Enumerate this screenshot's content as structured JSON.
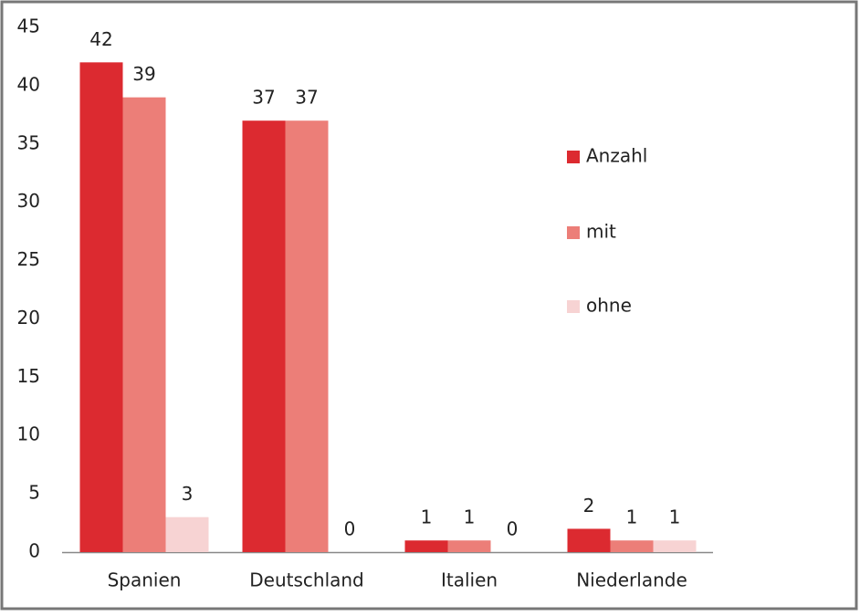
{
  "chart_data": {
    "type": "bar",
    "categories": [
      "Spanien",
      "Deutschland",
      "Italien",
      "Niederlande"
    ],
    "series": [
      {
        "name": "Anzahl",
        "color": "#dc2a30",
        "values": [
          42,
          37,
          1,
          2
        ]
      },
      {
        "name": "mit",
        "color": "#ec7e78",
        "values": [
          39,
          37,
          1,
          1
        ]
      },
      {
        "name": "ohne",
        "color": "#f7d3d3",
        "values": [
          3,
          0,
          0,
          1
        ]
      }
    ],
    "ylim": [
      0,
      45
    ],
    "yticks": [
      0,
      5,
      10,
      15,
      20,
      25,
      30,
      35,
      40,
      45
    ],
    "grid": false,
    "legend": "right",
    "data_labels": true
  }
}
